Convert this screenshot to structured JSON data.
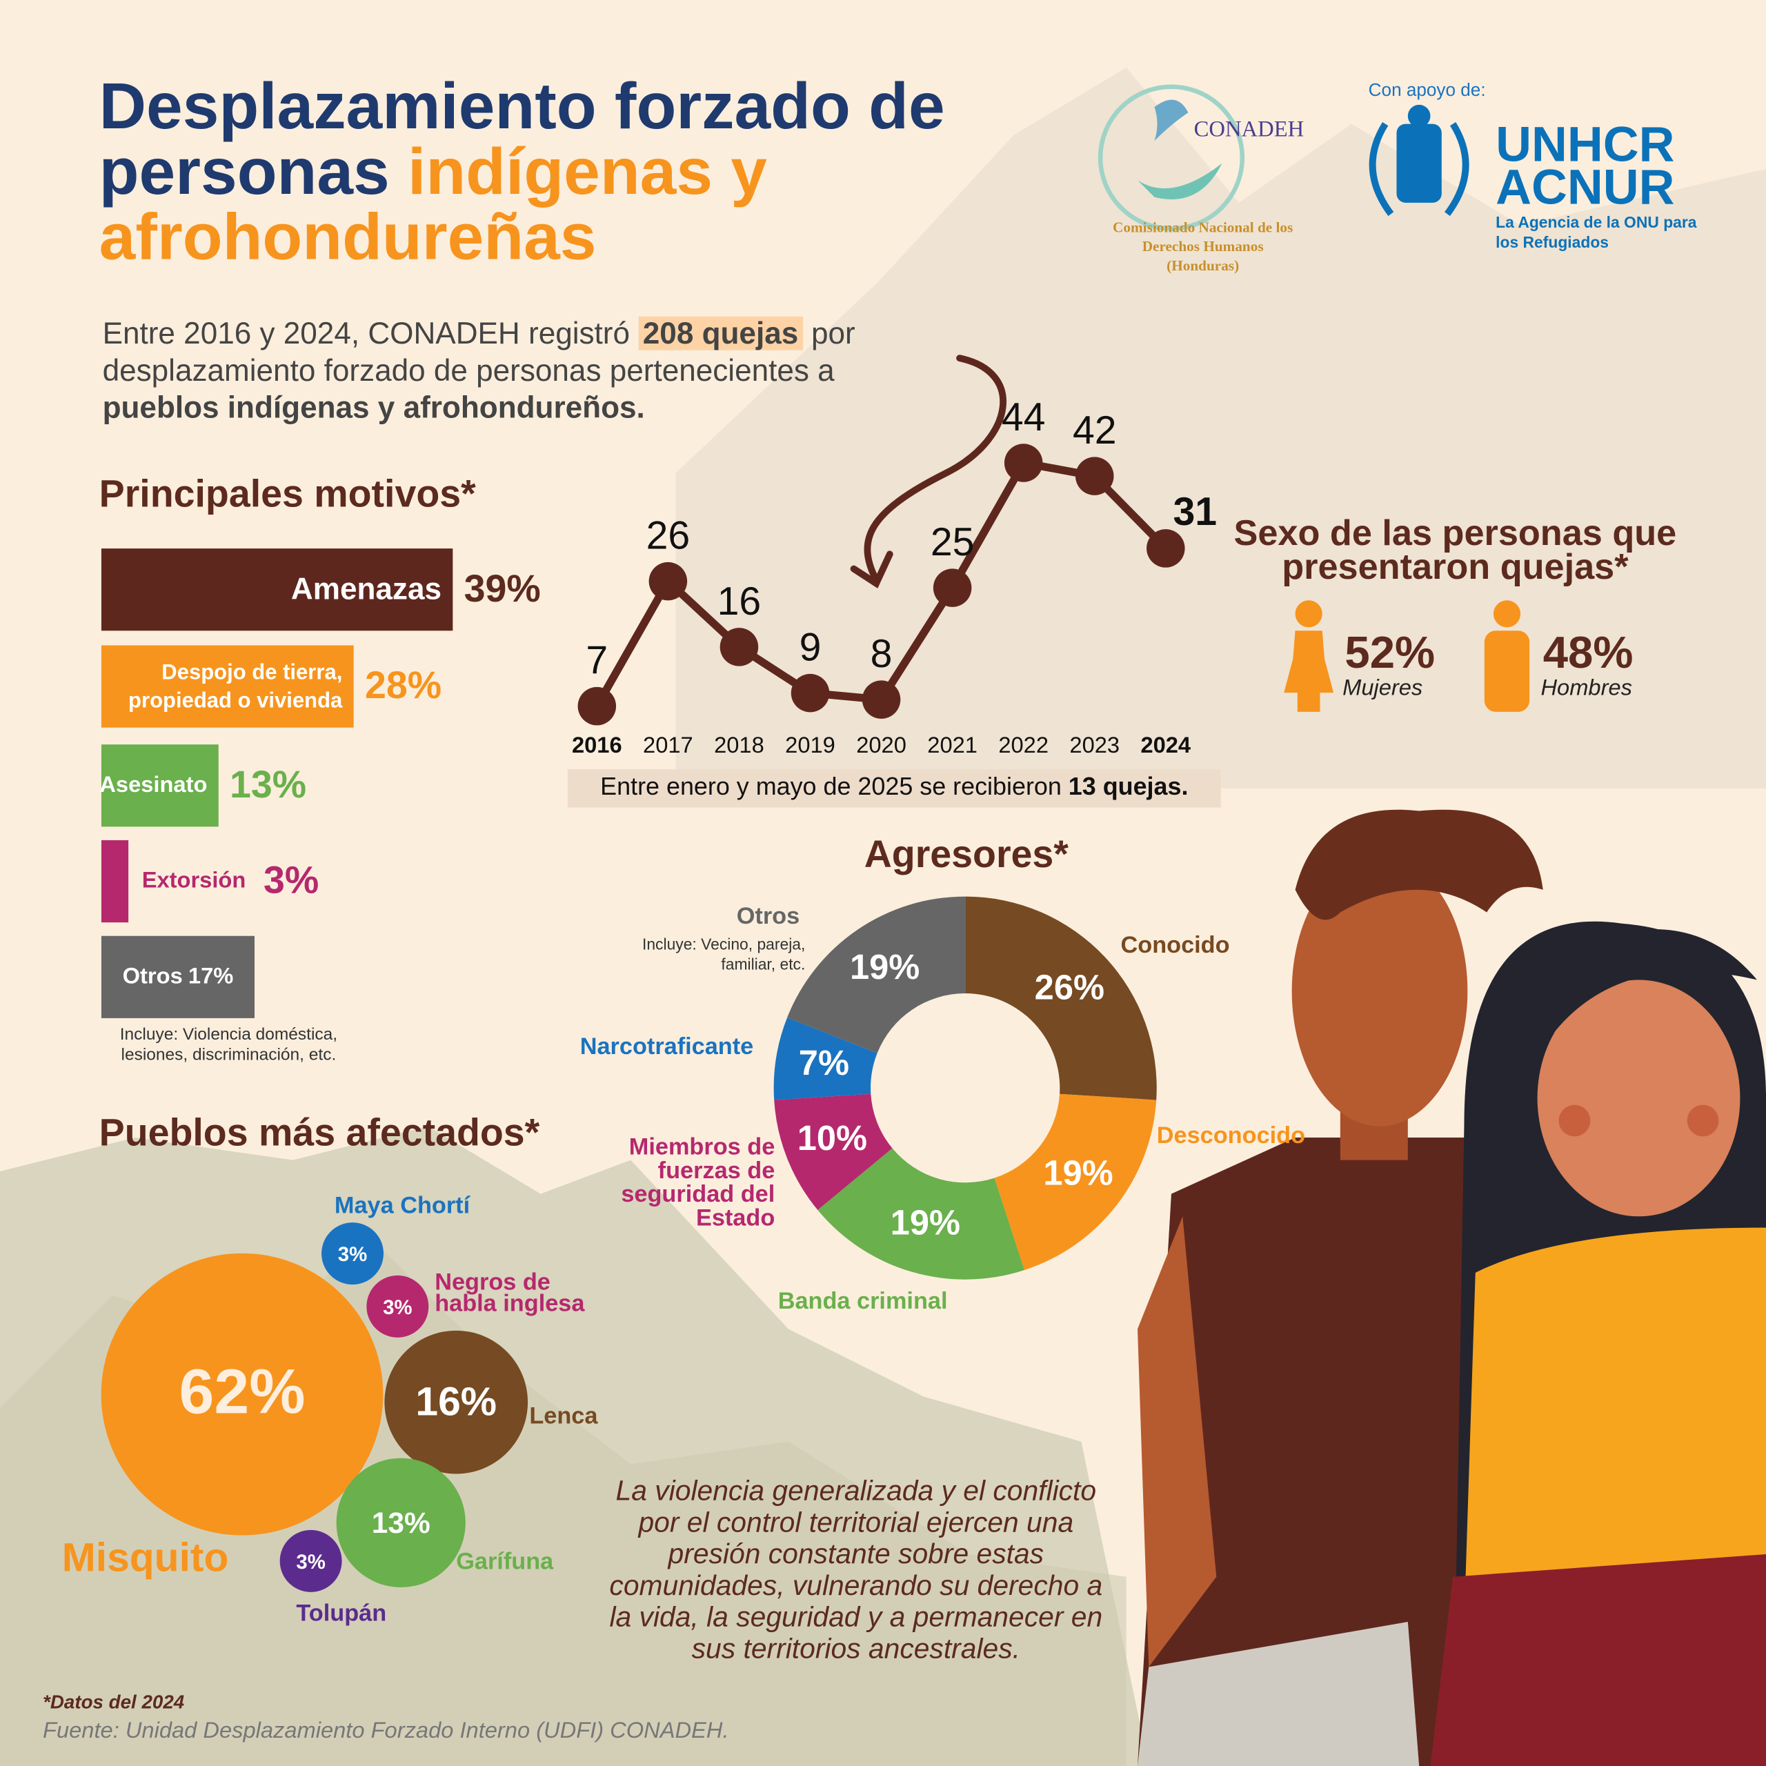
{
  "header": {
    "title_1": "Desplazamiento forzado de personas ",
    "title_2": "indígenas y afrohondureñas"
  },
  "logos": {
    "conadeh": "CONADEH",
    "conadeh_caption": "Comisionado Nacional de los Derechos Humanos (Honduras)",
    "support": "Con apoyo de:",
    "unhcr": "UNHCR",
    "acnur": "ACNUR",
    "acnur_caption": "La Agencia de la ONU para los Refugiados"
  },
  "intro": {
    "part_1": "Entre 2016 y 2024, CONADEH registró ",
    "part_2": "208 quejas",
    "part_3": " por desplazamiento forzado de personas pertenecientes a ",
    "part_4": "pueblos indígenas y afrohondureños."
  },
  "quote": "La violencia generalizada y el conflicto por el control territorial ejercen una presión constante sobre estas comunidades, vulnerando su derecho a la vida, la seguridad y a permanecer en sus territorios ancestrales.",
  "footnote": "*Datos del 2024",
  "source": "Fuente: Unidad Desplazamiento Forzado Interno (UDFI) CONADEH.",
  "chart_data": [
    {
      "type": "line",
      "x": [
        2016,
        2017,
        2018,
        2019,
        2020,
        2021,
        2022,
        2023,
        2024
      ],
      "values": [
        7,
        26,
        16,
        9,
        8,
        25,
        44,
        42,
        31
      ],
      "color": "#5e271e",
      "note": "Entre enero y mayo de 2025 se recibieron ",
      "note_bold": "13 quejas."
    },
    {
      "type": "bar",
      "title": "Principales motivos*",
      "categories": [
        "Amenazas",
        "Despojo de tierra, propiedad o vivienda",
        "Asesinato",
        "Extorsión",
        "Otros"
      ],
      "values": [
        39,
        28,
        13,
        3,
        17
      ],
      "value_labels": [
        "39%",
        "28%",
        "13%",
        "3%",
        "17%"
      ],
      "colors": [
        "#5e271e",
        "#f7941d",
        "#6ab04c",
        "#b5286e",
        "#666666"
      ],
      "note": "Incluye: Violencia doméstica, lesiones, discriminación, etc."
    },
    {
      "type": "donut",
      "title": "Agresores*",
      "categories": [
        "Conocido",
        "Desconocido",
        "Banda criminal",
        "Miembros de fuerzas de seguridad del Estado",
        "Narcotraficante",
        "Otros"
      ],
      "values": [
        26,
        19,
        19,
        10,
        7,
        19
      ],
      "value_labels": [
        "26%",
        "19%",
        "19%",
        "10%",
        "7%",
        "19%"
      ],
      "colors": [
        "#764a22",
        "#f7941d",
        "#6ab04c",
        "#b5286e",
        "#1a73c0",
        "#666666"
      ],
      "note": "Incluye: Vecino, pareja, familiar, etc."
    },
    {
      "type": "bubble",
      "title": "Pueblos más afectados*",
      "categories": [
        "Misquito",
        "Lenca",
        "Garífuna",
        "Maya Chortí",
        "Negros de habla inglesa",
        "Tolupán"
      ],
      "values": [
        62,
        16,
        13,
        3,
        3,
        3
      ],
      "value_labels": [
        "62%",
        "16%",
        "13%",
        "3%",
        "3%",
        "3%"
      ],
      "colors": [
        "#f7941d",
        "#764a22",
        "#6ab04c",
        "#1a73c0",
        "#b5286e",
        "#5b2c8e"
      ]
    },
    {
      "type": "pictogram",
      "title": "Sexo de las personas que presentaron quejas*",
      "categories": [
        "Mujeres",
        "Hombres"
      ],
      "values": [
        52,
        48
      ],
      "value_labels": [
        "52%",
        "48%"
      ],
      "color": "#f7941d"
    }
  ]
}
